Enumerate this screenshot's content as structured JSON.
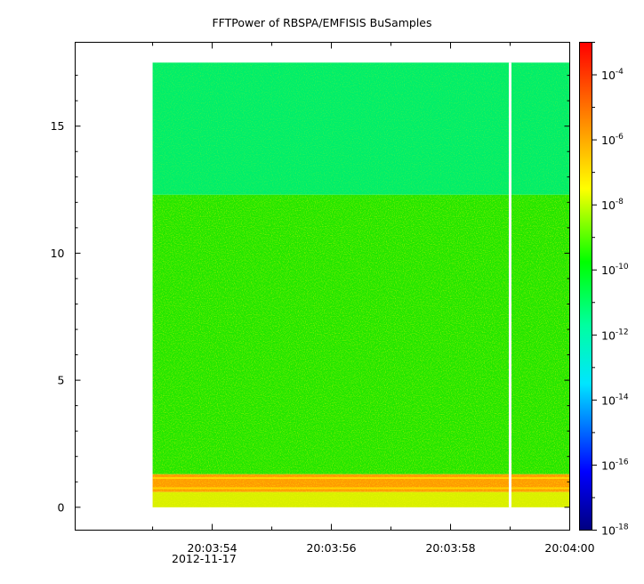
{
  "chart_data": {
    "type": "heatmap",
    "title": "FFTPower of RBSPA/EMFISIS  BuSamples",
    "xlabel": "",
    "ylabel": "",
    "x_ticks": [
      "20:03:54",
      "20:03:56",
      "20:03:58",
      "20:04:00"
    ],
    "x_tick_date": "2012-11-17",
    "x_range_seconds": [
      -8.3,
      0.0
    ],
    "data_x_range_seconds": [
      -7.0,
      0.0
    ],
    "data_gap_at_seconds": -1.0,
    "y_ticks": [
      0,
      5,
      10,
      15
    ],
    "ylim": [
      -0.9,
      18.3
    ],
    "data_y_range": [
      0,
      17.5
    ],
    "colorbar": {
      "scale": "log",
      "range": [
        1e-18,
        0.001
      ],
      "tick_base": "10",
      "tick_exponents": [
        "-18",
        "-16",
        "-14",
        "-12",
        "-10",
        "-8",
        "-6",
        "-4"
      ]
    },
    "bands": [
      {
        "y_from": 12.3,
        "y_to": 17.5,
        "level": "approx 1e-11 (green-cyan)"
      },
      {
        "y_from": 1.3,
        "y_to": 12.3,
        "level": "approx 1e-10 (green, speckled yellow)"
      },
      {
        "y_from": 0.6,
        "y_to": 1.3,
        "level": "approx 1e-7 (orange)"
      },
      {
        "y_from": 0.0,
        "y_to": 0.6,
        "level": "approx 1e-8 (yellow)"
      }
    ],
    "grid": false
  }
}
